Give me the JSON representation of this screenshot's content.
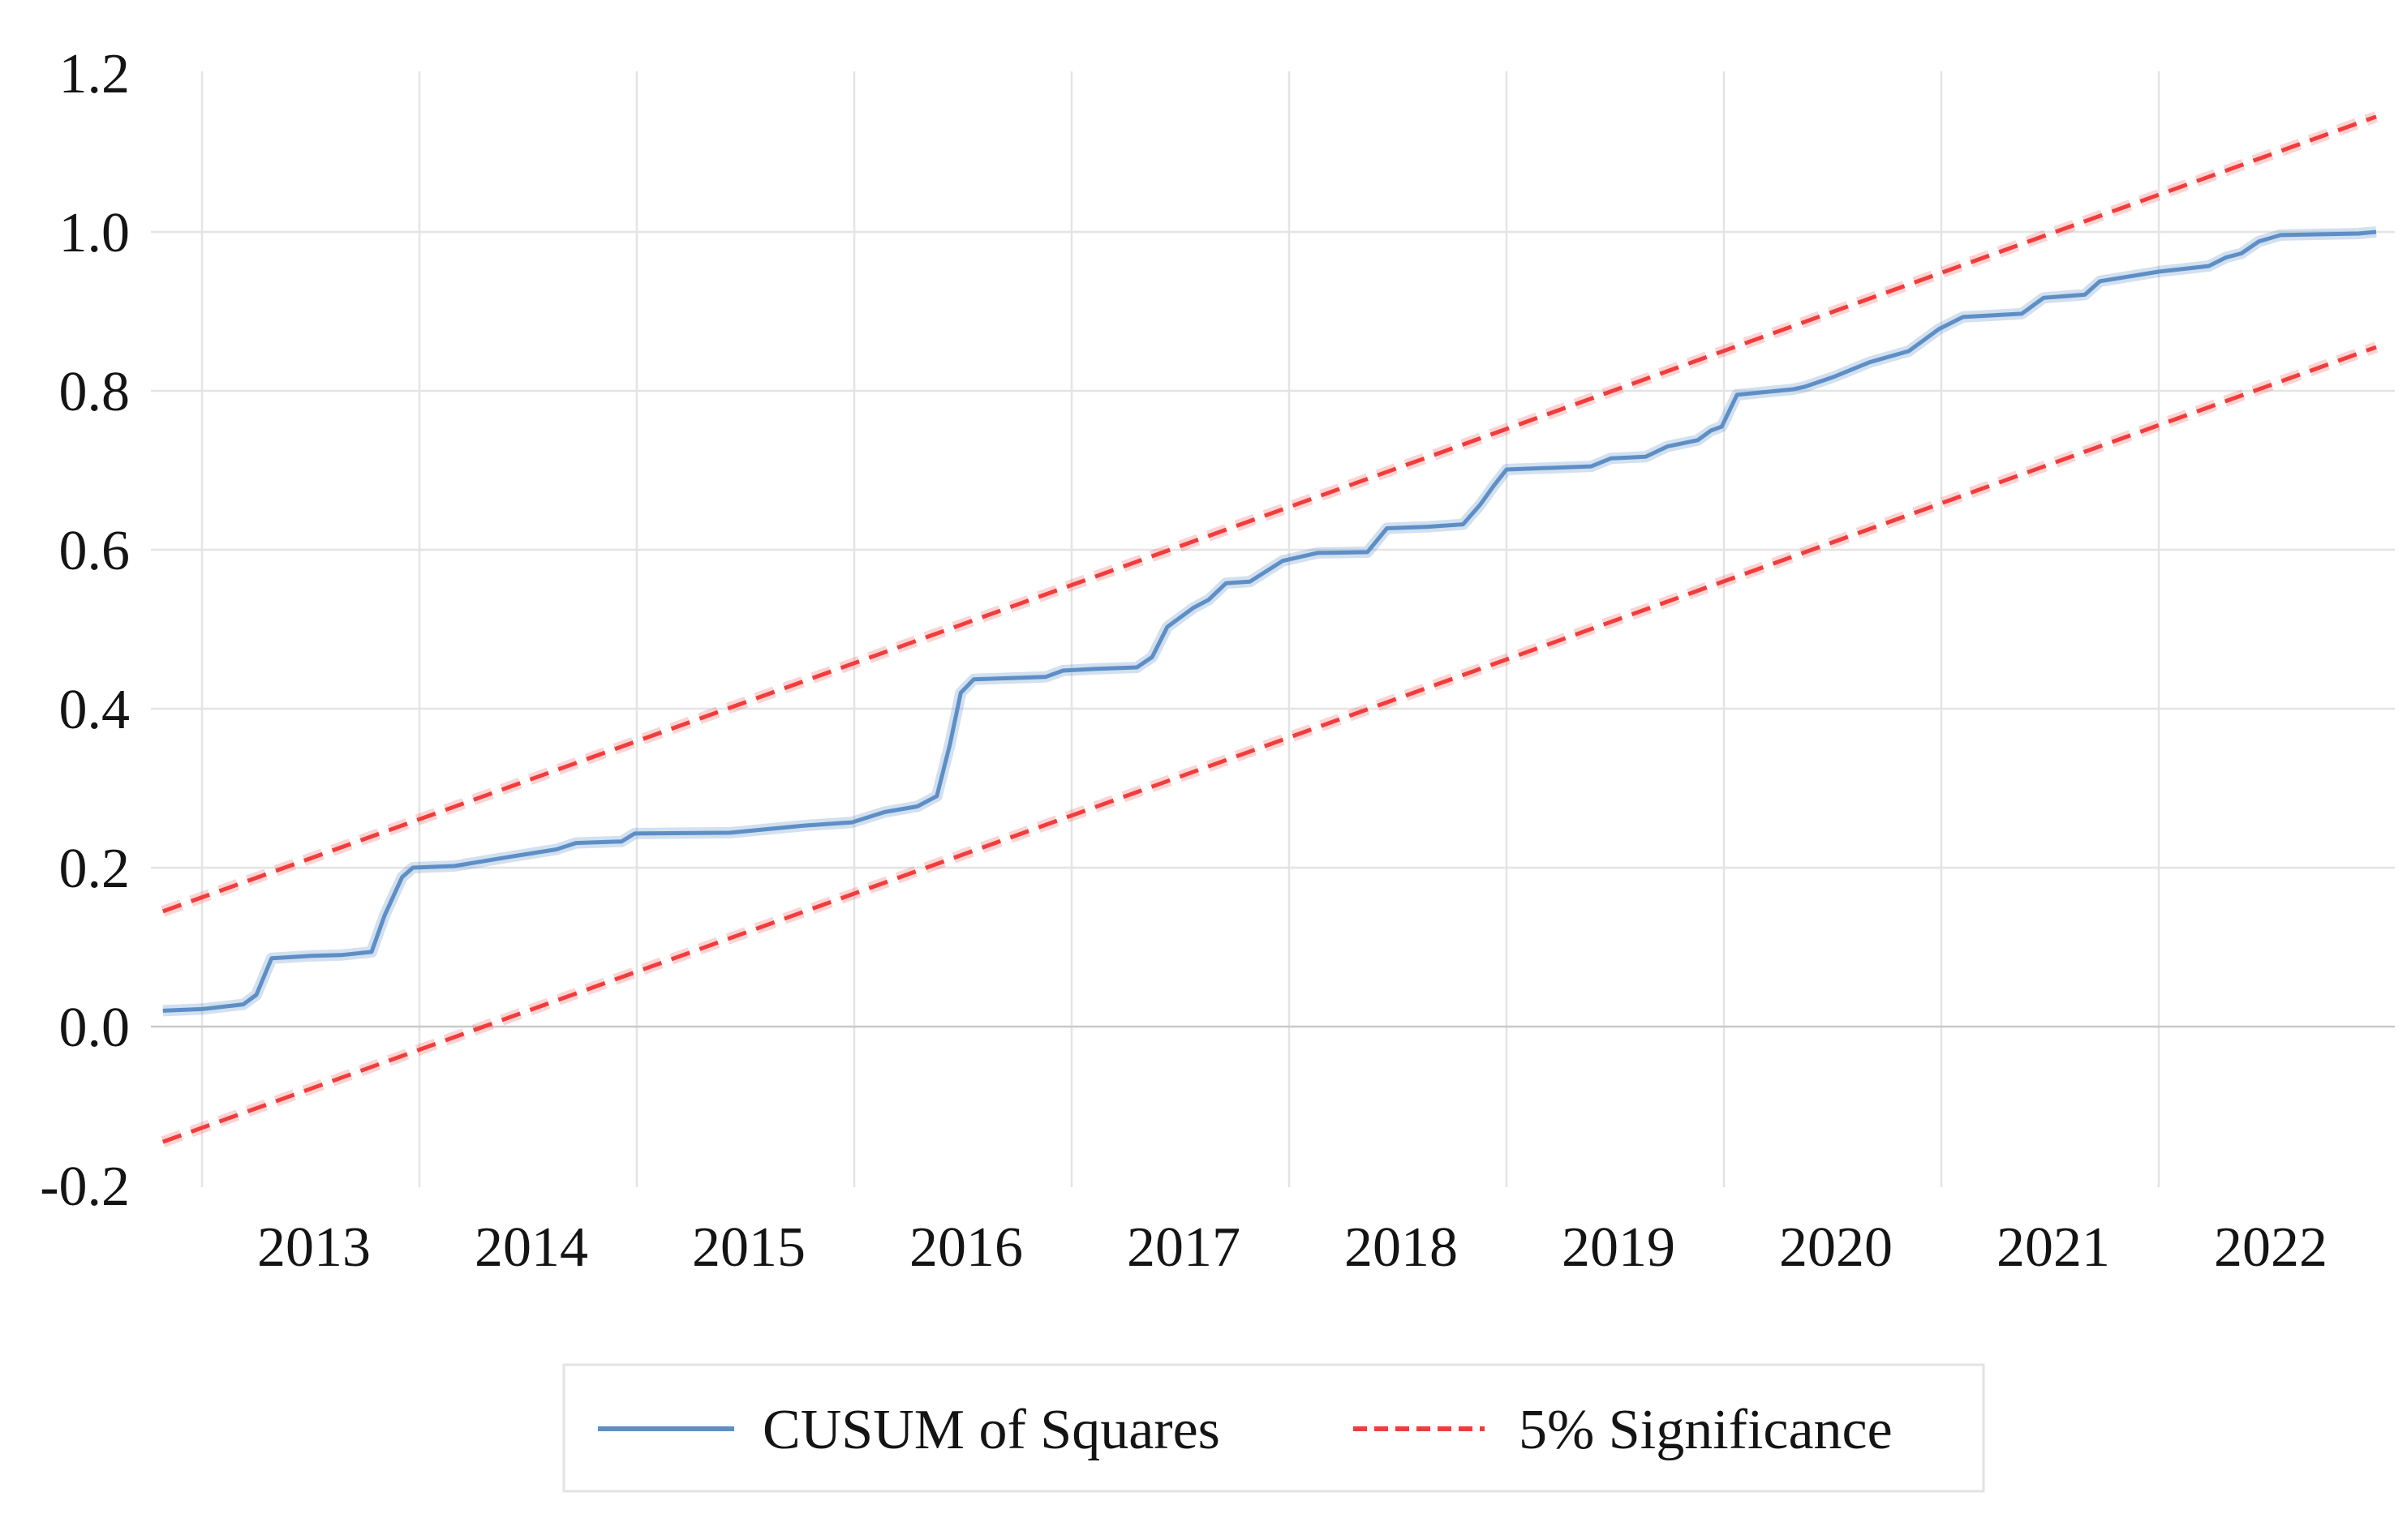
{
  "chart_data": {
    "type": "line",
    "title": "",
    "xlabel": "",
    "ylabel": "",
    "grid": true,
    "legend_position": "bottom-center",
    "colors": {
      "cusum_line": "#5d8ec6",
      "cusum_halo": "rgba(93,142,198,0.28)",
      "significance_line": "#f23c3c",
      "significance_halo": "rgba(242,60,60,0.22)",
      "gridline": "#e4e4e4",
      "gridline_zero": "#c9c9c9",
      "text": "#141414",
      "legend_border": "#e3e3e3",
      "background": "#ffffff"
    },
    "x_axis": {
      "unit": "year",
      "range_years": [
        2012.76,
        2023.08
      ],
      "gridline_years": [
        2013,
        2014,
        2015,
        2016,
        2017,
        2018,
        2019,
        2020,
        2021,
        2022
      ],
      "tick_labels": [
        "2013",
        "2014",
        "2015",
        "2016",
        "2017",
        "2018",
        "2019",
        "2020",
        "2021",
        "2022"
      ]
    },
    "y_axis": {
      "range": [
        -0.2,
        1.2
      ],
      "tick_labels": [
        "1.2",
        "1.0",
        "0.8",
        "0.6",
        "0.4",
        "0.2",
        "0.0",
        "-0.2"
      ],
      "tick_values": [
        1.2,
        1.0,
        0.8,
        0.6,
        0.4,
        0.2,
        0.0,
        -0.2
      ],
      "gridline_values": [
        1.0,
        0.8,
        0.6,
        0.4,
        0.2,
        0.0
      ]
    },
    "series": [
      {
        "name": "CUSUM of Squares",
        "style": "solid",
        "points": [
          [
            2012.82,
            0.02
          ],
          [
            2013.0,
            0.022
          ],
          [
            2013.19,
            0.028
          ],
          [
            2013.25,
            0.04
          ],
          [
            2013.32,
            0.086
          ],
          [
            2013.5,
            0.089
          ],
          [
            2013.64,
            0.09
          ],
          [
            2013.78,
            0.094
          ],
          [
            2013.84,
            0.14
          ],
          [
            2013.92,
            0.188
          ],
          [
            2013.97,
            0.2
          ],
          [
            2014.16,
            0.202
          ],
          [
            2014.4,
            0.213
          ],
          [
            2014.63,
            0.223
          ],
          [
            2014.72,
            0.231
          ],
          [
            2014.93,
            0.233
          ],
          [
            2014.99,
            0.243
          ],
          [
            2015.43,
            0.244
          ],
          [
            2015.77,
            0.253
          ],
          [
            2015.99,
            0.257
          ],
          [
            2016.14,
            0.27
          ],
          [
            2016.29,
            0.277
          ],
          [
            2016.38,
            0.29
          ],
          [
            2016.44,
            0.355
          ],
          [
            2016.49,
            0.42
          ],
          [
            2016.55,
            0.437
          ],
          [
            2016.88,
            0.44
          ],
          [
            2016.96,
            0.448
          ],
          [
            2017.1,
            0.45
          ],
          [
            2017.3,
            0.452
          ],
          [
            2017.37,
            0.465
          ],
          [
            2017.44,
            0.503
          ],
          [
            2017.56,
            0.527
          ],
          [
            2017.63,
            0.537
          ],
          [
            2017.71,
            0.558
          ],
          [
            2017.82,
            0.56
          ],
          [
            2017.97,
            0.586
          ],
          [
            2018.05,
            0.591
          ],
          [
            2018.13,
            0.596
          ],
          [
            2018.36,
            0.597
          ],
          [
            2018.45,
            0.627
          ],
          [
            2018.64,
            0.629
          ],
          [
            2018.8,
            0.632
          ],
          [
            2018.88,
            0.657
          ],
          [
            2018.94,
            0.68
          ],
          [
            2019.0,
            0.701
          ],
          [
            2019.39,
            0.705
          ],
          [
            2019.48,
            0.715
          ],
          [
            2019.64,
            0.717
          ],
          [
            2019.74,
            0.73
          ],
          [
            2019.88,
            0.738
          ],
          [
            2019.94,
            0.75
          ],
          [
            2019.99,
            0.755
          ],
          [
            2020.06,
            0.795
          ],
          [
            2020.32,
            0.802
          ],
          [
            2020.37,
            0.805
          ],
          [
            2020.5,
            0.817
          ],
          [
            2020.67,
            0.836
          ],
          [
            2020.85,
            0.85
          ],
          [
            2020.99,
            0.878
          ],
          [
            2021.1,
            0.893
          ],
          [
            2021.37,
            0.897
          ],
          [
            2021.47,
            0.917
          ],
          [
            2021.66,
            0.921
          ],
          [
            2021.73,
            0.938
          ],
          [
            2022.0,
            0.95
          ],
          [
            2022.23,
            0.957
          ],
          [
            2022.31,
            0.968
          ],
          [
            2022.38,
            0.973
          ],
          [
            2022.46,
            0.988
          ],
          [
            2022.56,
            0.996
          ],
          [
            2022.92,
            0.998
          ],
          [
            2023.0,
            1.0
          ]
        ]
      },
      {
        "name": "5% Significance",
        "style": "dashed",
        "segments": [
          [
            [
              2012.82,
              0.145
            ],
            [
              2023.0,
              1.145
            ]
          ],
          [
            [
              2012.82,
              -0.145
            ],
            [
              2023.0,
              0.855
            ]
          ]
        ]
      }
    ],
    "legend": {
      "entries": [
        {
          "label": "CUSUM of Squares",
          "style": "solid"
        },
        {
          "label": "5% Significance",
          "style": "dashed"
        }
      ]
    }
  }
}
